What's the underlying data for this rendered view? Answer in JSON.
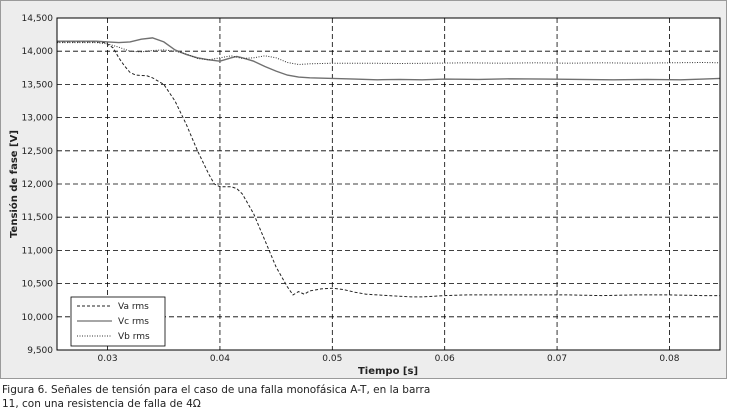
{
  "caption": "Figura 6. Señales de tensión para el caso de una falla monofásica A-T, en la barra 11, con una resistencia de falla de 4Ω",
  "colors": {
    "frame_bg": "#ededed",
    "plot_bg": "#ffffff",
    "grid": "#000000",
    "va": "#222222",
    "vc": "#707070",
    "vb": "#333333"
  },
  "chart_data": {
    "type": "line",
    "title": "",
    "xlabel": "Tiempo [s]",
    "ylabel": "Tensión de fase [V]",
    "xlim": [
      0.0255,
      0.0845
    ],
    "ylim": [
      9500,
      14500
    ],
    "xticks": [
      0.03,
      0.04,
      0.05,
      0.06,
      0.07,
      0.08
    ],
    "xtick_labels": [
      "0.03",
      "0.04",
      "0.05",
      "0.06",
      "0.07",
      "0.08"
    ],
    "yticks": [
      9500,
      10000,
      10500,
      11000,
      11500,
      12000,
      12500,
      13000,
      13500,
      14000,
      14500
    ],
    "ytick_labels": [
      "9,500",
      "10,000",
      "10,500",
      "11,000",
      "11,500",
      "12,000",
      "12,500",
      "13,000",
      "13,500",
      "14,000",
      "14,500"
    ],
    "grid": true,
    "legend_position": "bottom-left",
    "series": [
      {
        "name": "Va rms",
        "style": "dashed",
        "points": [
          [
            0.0255,
            14140
          ],
          [
            0.029,
            14140
          ],
          [
            0.0298,
            14130
          ],
          [
            0.0305,
            14050
          ],
          [
            0.031,
            13900
          ],
          [
            0.0315,
            13780
          ],
          [
            0.032,
            13680
          ],
          [
            0.0325,
            13640
          ],
          [
            0.0335,
            13630
          ],
          [
            0.034,
            13600
          ],
          [
            0.035,
            13500
          ],
          [
            0.036,
            13250
          ],
          [
            0.037,
            12900
          ],
          [
            0.038,
            12500
          ],
          [
            0.039,
            12150
          ],
          [
            0.0395,
            12000
          ],
          [
            0.04,
            11960
          ],
          [
            0.041,
            11960
          ],
          [
            0.0415,
            11930
          ],
          [
            0.042,
            11850
          ],
          [
            0.043,
            11550
          ],
          [
            0.044,
            11150
          ],
          [
            0.045,
            10750
          ],
          [
            0.046,
            10450
          ],
          [
            0.0465,
            10330
          ],
          [
            0.047,
            10380
          ],
          [
            0.0475,
            10340
          ],
          [
            0.048,
            10390
          ],
          [
            0.049,
            10420
          ],
          [
            0.05,
            10430
          ],
          [
            0.051,
            10410
          ],
          [
            0.052,
            10370
          ],
          [
            0.053,
            10340
          ],
          [
            0.055,
            10320
          ],
          [
            0.057,
            10300
          ],
          [
            0.058,
            10300
          ],
          [
            0.06,
            10320
          ],
          [
            0.062,
            10330
          ],
          [
            0.065,
            10330
          ],
          [
            0.068,
            10330
          ],
          [
            0.071,
            10330
          ],
          [
            0.074,
            10320
          ],
          [
            0.077,
            10330
          ],
          [
            0.08,
            10330
          ],
          [
            0.083,
            10320
          ],
          [
            0.0845,
            10320
          ]
        ]
      },
      {
        "name": "Vc rms",
        "style": "solid",
        "points": [
          [
            0.0255,
            14150
          ],
          [
            0.029,
            14150
          ],
          [
            0.03,
            14140
          ],
          [
            0.031,
            14130
          ],
          [
            0.032,
            14140
          ],
          [
            0.033,
            14180
          ],
          [
            0.034,
            14200
          ],
          [
            0.035,
            14140
          ],
          [
            0.036,
            14020
          ],
          [
            0.037,
            13950
          ],
          [
            0.038,
            13900
          ],
          [
            0.039,
            13870
          ],
          [
            0.04,
            13850
          ],
          [
            0.041,
            13900
          ],
          [
            0.0415,
            13920
          ],
          [
            0.042,
            13900
          ],
          [
            0.043,
            13850
          ],
          [
            0.044,
            13770
          ],
          [
            0.045,
            13700
          ],
          [
            0.046,
            13640
          ],
          [
            0.047,
            13610
          ],
          [
            0.048,
            13600
          ],
          [
            0.05,
            13590
          ],
          [
            0.052,
            13580
          ],
          [
            0.054,
            13570
          ],
          [
            0.056,
            13575
          ],
          [
            0.058,
            13570
          ],
          [
            0.06,
            13580
          ],
          [
            0.063,
            13575
          ],
          [
            0.066,
            13585
          ],
          [
            0.069,
            13580
          ],
          [
            0.072,
            13575
          ],
          [
            0.075,
            13570
          ],
          [
            0.078,
            13575
          ],
          [
            0.081,
            13570
          ],
          [
            0.083,
            13580
          ],
          [
            0.0845,
            13590
          ]
        ]
      },
      {
        "name": "Vb rms",
        "style": "dotted",
        "points": [
          [
            0.0255,
            14130
          ],
          [
            0.029,
            14130
          ],
          [
            0.03,
            14110
          ],
          [
            0.031,
            14060
          ],
          [
            0.032,
            14000
          ],
          [
            0.033,
            13990
          ],
          [
            0.034,
            14010
          ],
          [
            0.035,
            14020
          ],
          [
            0.036,
            14000
          ],
          [
            0.037,
            13960
          ],
          [
            0.038,
            13890
          ],
          [
            0.039,
            13870
          ],
          [
            0.04,
            13900
          ],
          [
            0.041,
            13930
          ],
          [
            0.042,
            13890
          ],
          [
            0.043,
            13900
          ],
          [
            0.044,
            13930
          ],
          [
            0.045,
            13900
          ],
          [
            0.046,
            13830
          ],
          [
            0.047,
            13800
          ],
          [
            0.048,
            13810
          ],
          [
            0.05,
            13820
          ],
          [
            0.053,
            13820
          ],
          [
            0.056,
            13815
          ],
          [
            0.059,
            13820
          ],
          [
            0.062,
            13825
          ],
          [
            0.065,
            13820
          ],
          [
            0.068,
            13825
          ],
          [
            0.071,
            13820
          ],
          [
            0.074,
            13825
          ],
          [
            0.077,
            13820
          ],
          [
            0.08,
            13825
          ],
          [
            0.083,
            13830
          ],
          [
            0.0845,
            13825
          ]
        ]
      }
    ]
  }
}
